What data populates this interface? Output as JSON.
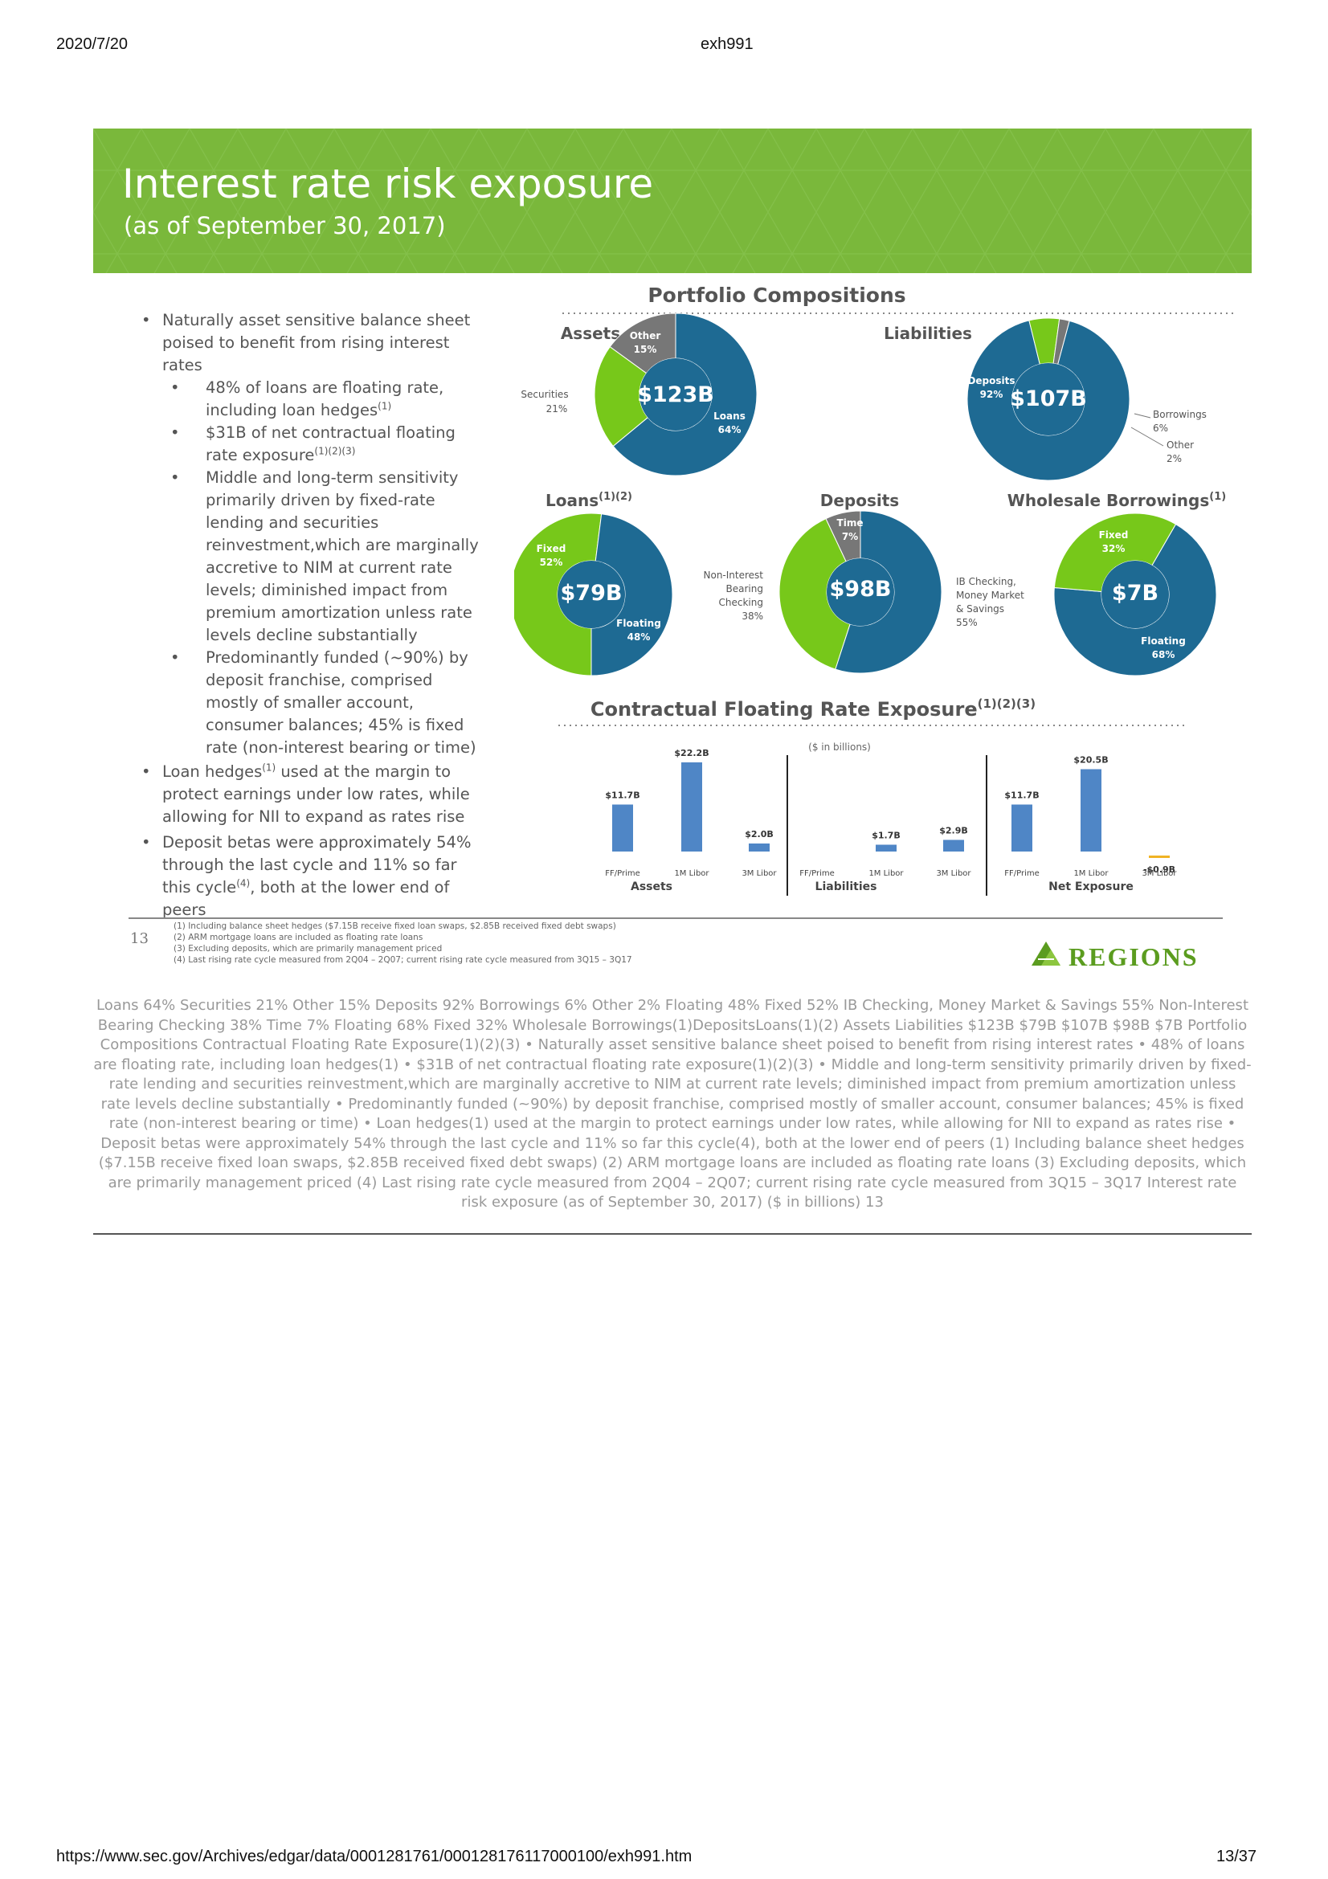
{
  "browser": {
    "date": "2020/7/20",
    "doc_title": "exh991",
    "url": "https://www.sec.gov/Archives/edgar/data/0001281761/000128176117000100/exh991.htm",
    "page_count": "13/37"
  },
  "slide": {
    "title": "Interest rate risk exposure",
    "subtitle": "(as of September 30, 2017)",
    "bullets": {
      "b1": "Naturally asset sensitive balance sheet poised to benefit from rising interest rates",
      "b1a": "48% of loans are floating rate, including loan hedges",
      "b1a_sup": "(1)",
      "b1b": "$31B of net contractual floating rate exposure",
      "b1b_sup": "(1)(2)(3)",
      "b1c": "Middle and long-term sensitivity primarily driven by fixed-rate lending and securities reinvestment,which are marginally accretive to NIM at current rate levels; diminished impact from premium amortization unless rate levels decline substantially",
      "b1d": "Predominantly funded (~90%) by deposit franchise, comprised mostly of smaller account, consumer balances; 45% is fixed rate (non-interest bearing or time)",
      "b2_pre": "Loan hedges",
      "b2_sup": "(1)",
      "b2_post": " used at the margin to protect earnings under low rates, while allowing for NII to expand as rates rise",
      "b3_pre": "Deposit betas were approximately 54% through the last cycle and 11% so far this cycle",
      "b3_sup": "(4)",
      "b3_post": ",  both at the lower end of peers"
    },
    "portfolio_heading": "Portfolio Compositions",
    "donuts": {
      "assets": {
        "heading": "Assets",
        "center": "$123B",
        "l1a": "Loans",
        "l1b": "64%",
        "l2a": "Securities",
        "l2b": "21%",
        "l3a": "Other",
        "l3b": "15%"
      },
      "liabilities": {
        "heading": "Liabilities",
        "center": "$107B",
        "l1a": "Deposits",
        "l1b": "92%",
        "l2a": "Borrowings",
        "l2b": "6%",
        "l3a": "Other",
        "l3b": "2%"
      },
      "loans": {
        "heading": "Loans",
        "sup": "(1)(2)",
        "center": "$79B",
        "l1a": "Floating",
        "l1b": "48%",
        "l2a": "Fixed",
        "l2b": "52%"
      },
      "deposits": {
        "heading": "Deposits",
        "center": "$98B",
        "l1a": "IB Checking,",
        "l1b": "Money Market",
        "l1c": "& Savings",
        "l1d": "55%",
        "l2a": "Non-Interest",
        "l2b": "Bearing",
        "l2c": "Checking",
        "l2d": "38%",
        "l3a": "Time",
        "l3b": "7%"
      },
      "wholesale": {
        "heading": "Wholesale Borrowings",
        "sup": "(1)",
        "center": "$7B",
        "l1a": "Floating",
        "l1b": "68%",
        "l2a": "Fixed",
        "l2b": "32%"
      }
    },
    "bar_heading": "Contractual Floating Rate Exposure",
    "bar_heading_sup": "(1)(2)(3)",
    "bar_units": "($ in billions)",
    "groups": [
      "Assets",
      "Liabilities",
      "Net Exposure"
    ],
    "footnotes": {
      "page": "13",
      "f1": "(1)  Including balance sheet hedges ($7.15B receive fixed loan swaps, $2.85B received fixed debt swaps)",
      "f2": "(2)  ARM mortgage loans are included as floating rate loans",
      "f3": "(3)  Excluding deposits, which are primarily management priced",
      "f4": "(4)  Last rising rate cycle measured from 2Q04 – 2Q07; current rising rate cycle measured from 3Q15 – 3Q17"
    },
    "logo_text": "REGIONS"
  },
  "extracted_text": "Loans 64% Securities 21% Other 15% Deposits 92% Borrowings 6% Other 2% Floating 48% Fixed 52% IB Checking, Money Market & Savings 55% Non-Interest Bearing Checking 38% Time 7% Floating 68% Fixed 32% Wholesale Borrowings(1)DepositsLoans(1)(2) Assets Liabilities $123B $79B $107B $98B $7B Portfolio Compositions Contractual Floating Rate Exposure(1)(2)(3) • Naturally asset sensitive balance sheet poised to benefit from rising interest rates • 48% of loans are floating rate, including loan hedges(1) • $31B of net contractual floating rate exposure(1)(2)(3) • Middle and long-term sensitivity primarily driven by fixed-rate lending and securities reinvestment,which are marginally accretive to NIM at current rate levels; diminished impact from premium amortization unless rate levels decline substantially  • Predominantly funded (~90%) by deposit franchise, comprised mostly of smaller account, consumer balances; 45% is fixed rate (non-interest bearing or time) • Loan hedges(1) used at the margin to protect earnings under low rates, while allowing for NII to expand as rates rise  • Deposit betas were approximately 54% through the last cycle and 11% so far this cycle(4), both at the lower end of peers (1) Including balance sheet hedges ($7.15B receive fixed loan swaps, $2.85B received fixed debt swaps) (2) ARM mortgage loans are included as floating rate loans (3) Excluding deposits, which are primarily management priced  (4) Last rising rate cycle measured from 2Q04 – 2Q07; current rising rate cycle measured from 3Q15 – 3Q17  Interest rate risk exposure (as of September 30, 2017) ($ in billions) 13",
  "colors": {
    "blue": "#1e6a93",
    "green": "#77c81a",
    "gray": "#777777",
    "bar": "#4f86c6",
    "neg": "#f0b323",
    "banner": "#7ab83b"
  },
  "chart_data": [
    {
      "type": "pie",
      "title": "Assets",
      "categories": [
        "Loans",
        "Securities",
        "Other"
      ],
      "values": [
        64,
        21,
        15
      ],
      "total": "$123B"
    },
    {
      "type": "pie",
      "title": "Liabilities",
      "categories": [
        "Deposits",
        "Borrowings",
        "Other"
      ],
      "values": [
        92,
        6,
        2
      ],
      "total": "$107B"
    },
    {
      "type": "pie",
      "title": "Loans(1)(2)",
      "categories": [
        "Floating",
        "Fixed"
      ],
      "values": [
        48,
        52
      ],
      "total": "$79B"
    },
    {
      "type": "pie",
      "title": "Deposits",
      "categories": [
        "IB Checking, Money Market & Savings",
        "Non-Interest Bearing Checking",
        "Time"
      ],
      "values": [
        55,
        38,
        7
      ],
      "total": "$98B"
    },
    {
      "type": "pie",
      "title": "Wholesale Borrowings(1)",
      "categories": [
        "Floating",
        "Fixed"
      ],
      "values": [
        68,
        32
      ],
      "total": "$7B"
    },
    {
      "type": "bar",
      "title": "Contractual Floating Rate Exposure(1)(2)(3)",
      "ylabel": "($ in billions)",
      "groups": [
        {
          "name": "Assets",
          "categories": [
            "FF/Prime",
            "1M Libor",
            "3M Libor"
          ],
          "values": [
            11.7,
            22.2,
            2.0
          ],
          "labels": [
            "$11.7B",
            "$22.2B",
            "$2.0B"
          ]
        },
        {
          "name": "Liabilities",
          "categories": [
            "FF/Prime",
            "1M Libor",
            "3M Libor"
          ],
          "values": [
            0,
            1.7,
            2.9
          ],
          "labels": [
            "",
            "$1.7B",
            "$2.9B"
          ]
        },
        {
          "name": "Net Exposure",
          "categories": [
            "FF/Prime",
            "1M Libor",
            "3M Libor"
          ],
          "values": [
            11.7,
            20.5,
            -0.9
          ],
          "labels": [
            "$11.7B",
            "$20.5B",
            "-$0.9B"
          ]
        }
      ]
    }
  ]
}
